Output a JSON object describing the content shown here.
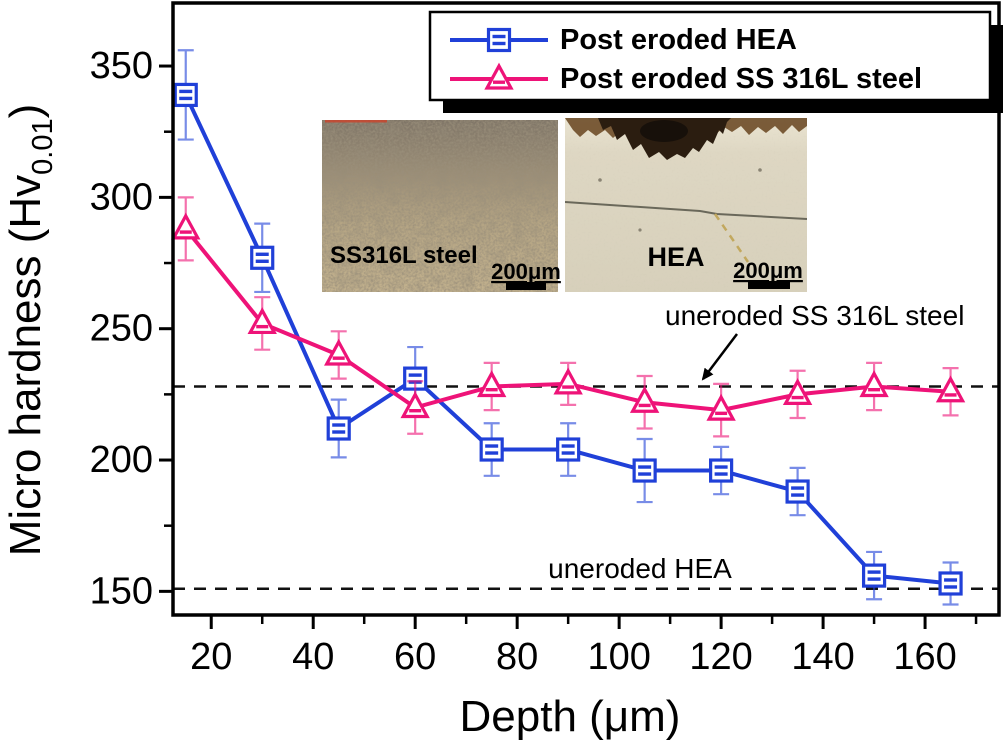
{
  "figure": {
    "background": "#ffffff"
  },
  "colors": {
    "hea_blue": "#2040d8",
    "ss_pink": "#ee1378",
    "axis": "#000000",
    "reference_dash": "#111111"
  },
  "chart_data": {
    "type": "line",
    "title": "",
    "xlabel": "Depth (μm)",
    "ylabel": "Micro hardness (Hv0.01)",
    "ylabel_parts": {
      "prefix": "Micro hardness (Hv",
      "subscript": "0.01",
      "suffix": ")"
    },
    "xlim": [
      12.5,
      174.5
    ],
    "ylim": [
      141,
      374
    ],
    "x_ticks": [
      20,
      40,
      60,
      80,
      100,
      120,
      140,
      160
    ],
    "x_minor_ticks": [
      30,
      50,
      70,
      90,
      110,
      130,
      150,
      170
    ],
    "y_ticks": [
      150,
      200,
      250,
      300,
      350
    ],
    "y_minor_ticks": [
      175,
      225,
      275,
      325
    ],
    "grid": false,
    "legend_position": "top-right",
    "series": [
      {
        "name": "Post eroded HEA",
        "marker": "square",
        "color": "#2040d8",
        "x": [
          15,
          30,
          45,
          60,
          75,
          90,
          105,
          120,
          135,
          150,
          165
        ],
        "y": [
          339,
          277,
          212,
          231,
          204,
          204,
          196,
          196,
          188,
          156,
          153
        ],
        "yerr": [
          17,
          13,
          11,
          12,
          10,
          10,
          12,
          9,
          9,
          9,
          8
        ]
      },
      {
        "name": "Post eroded SS 316L steel",
        "marker": "triangle",
        "color": "#ee1378",
        "x": [
          15,
          30,
          45,
          60,
          75,
          90,
          105,
          120,
          135,
          150,
          165
        ],
        "y": [
          288,
          252,
          240,
          220,
          228,
          229,
          222,
          219,
          225,
          228,
          226
        ],
        "yerr": [
          12,
          10,
          9,
          10,
          9,
          8,
          10,
          10,
          9,
          9,
          9
        ]
      }
    ],
    "reference_lines": [
      {
        "label": "uneroded SS 316L steel",
        "value": 228,
        "style": "dashed",
        "arrow": true
      },
      {
        "label": "uneroded HEA",
        "value": 151,
        "style": "dashed",
        "arrow": false
      }
    ]
  },
  "insets": [
    {
      "label": "SS316L steel",
      "scale_label": "200μm"
    },
    {
      "label": "HEA",
      "scale_label": "200μm"
    }
  ]
}
